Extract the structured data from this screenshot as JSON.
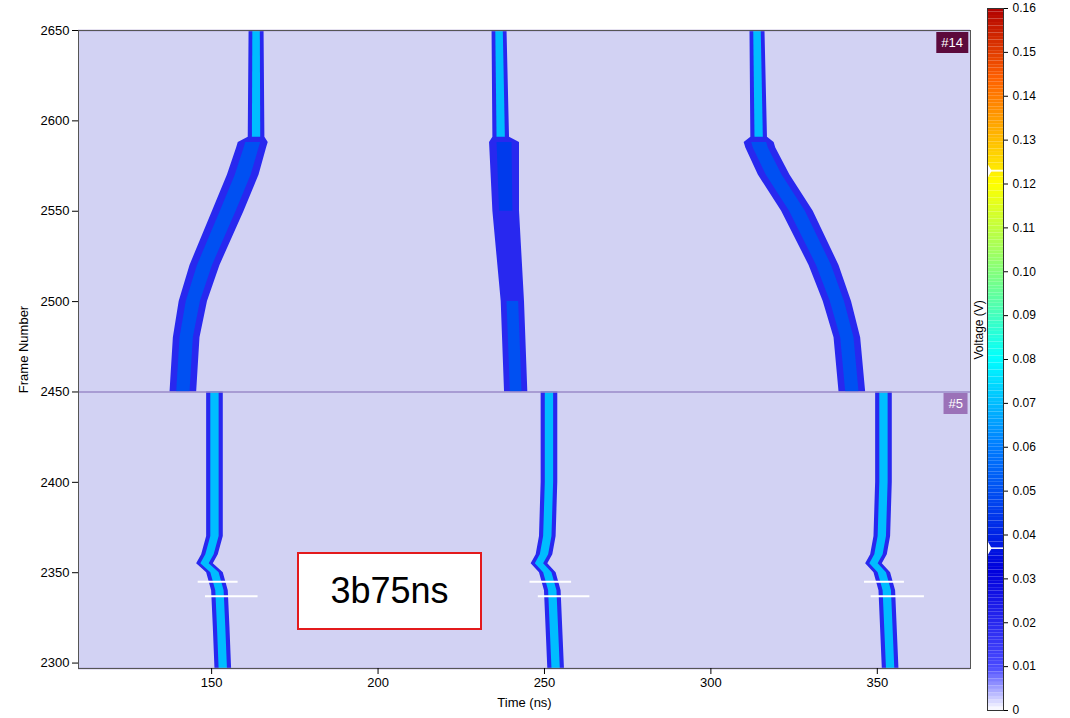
{
  "chart_data": {
    "type": "heatmap",
    "xlabel": "Time (ns)",
    "ylabel": "Frame Number",
    "xlim": [
      110,
      378
    ],
    "xticks": [
      150,
      200,
      250,
      300,
      350
    ],
    "ylim": [
      2297,
      2650
    ],
    "yticks": [
      2300,
      2350,
      2400,
      2450,
      2500,
      2550,
      2600,
      2650
    ],
    "colorbar": {
      "label": "Voltage (V)",
      "range": [
        0,
        0.16
      ],
      "ticks": [
        0,
        0.01,
        0.02,
        0.03,
        0.04,
        0.05,
        0.06,
        0.07,
        0.08,
        0.09,
        {
          "value": 0.1,
          "label": "0.10"
        },
        0.11,
        0.12,
        0.13,
        0.14,
        0.15,
        0.16
      ],
      "markers": [
        0.123,
        0.037
      ]
    },
    "panels": [
      {
        "label": "#14",
        "color": "#5c0a3c",
        "ylim": [
          2450,
          2650
        ],
        "ridges": [
          {
            "frames": [
              2450,
              2480,
              2500,
              2520,
              2550,
              2570,
              2585,
              2588,
              2591,
              2650
            ],
            "time": [
              141.5,
              142.5,
              144.5,
              148,
              155,
              159.5,
              162,
              162.5,
              163.5,
              163.5
            ],
            "width": [
              8,
              8,
              8.5,
              9,
              9.5,
              9.5,
              9,
              9,
              5,
              4.5
            ],
            "peak": [
              0.05,
              0.05,
              0.05,
              0.05,
              0.05,
              0.05,
              0.05,
              0.05,
              0.07,
              0.07
            ],
            "edge": 0.02
          },
          {
            "frames": [
              2450,
              2500,
              2550,
              2588,
              2591,
              2650
            ],
            "time": [
              241.5,
              240.5,
              238.5,
              238,
              237,
              236.5
            ],
            "width": [
              7,
              7,
              8,
              9,
              5,
              4.5
            ],
            "peak": [
              0.05,
              0.05,
              0.045,
              0.045,
              0.07,
              0.07
            ],
            "edge": 0.02
          },
          {
            "frames": [
              2450,
              2480,
              2500,
              2520,
              2550,
              2570,
              2585,
              2588,
              2591,
              2650
            ],
            "time": [
              342.5,
              341,
              338,
              334,
              326,
              319,
              315,
              314.5,
              314.5,
              314
            ],
            "width": [
              8,
              8,
              8.5,
              9,
              9.5,
              9.5,
              9,
              9,
              5,
              4.5
            ],
            "peak": [
              0.05,
              0.05,
              0.05,
              0.05,
              0.05,
              0.05,
              0.05,
              0.05,
              0.07,
              0.07
            ],
            "edge": 0.02
          }
        ]
      },
      {
        "label": "#5",
        "color": "#9b72b8",
        "ylim": [
          2297,
          2450
        ],
        "ridges": [
          {
            "frames": [
              2297,
              2320,
              2340,
              2350,
              2355,
              2360,
              2370,
              2400,
              2450
            ],
            "time": [
              153.5,
              153,
              152.5,
              151,
              148,
              149.5,
              151,
              151,
              151
            ],
            "width": [
              5,
              5,
              5,
              5,
              5,
              5,
              5,
              5,
              5
            ],
            "peak": [
              0.07,
              0.07,
              0.07,
              0.07,
              0.07,
              0.07,
              0.07,
              0.07,
              0.07
            ],
            "edge": 0.02
          },
          {
            "frames": [
              2297,
              2340,
              2350,
              2355,
              2360,
              2370,
              2400,
              2450
            ],
            "time": [
              253.5,
              252.5,
              251,
              248.5,
              250,
              251,
              251.5,
              251.5
            ],
            "width": [
              5,
              5,
              5,
              5,
              5,
              5,
              5,
              5
            ],
            "peak": [
              0.07,
              0.07,
              0.07,
              0.07,
              0.07,
              0.07,
              0.07,
              0.07
            ],
            "edge": 0.02
          },
          {
            "frames": [
              2297,
              2340,
              2350,
              2355,
              2360,
              2370,
              2400,
              2450
            ],
            "time": [
              354,
              353,
              351.5,
              349,
              350.5,
              351.5,
              352,
              352
            ],
            "width": [
              5,
              5,
              5,
              5,
              5,
              5,
              5,
              5
            ],
            "peak": [
              0.07,
              0.07,
              0.07,
              0.07,
              0.07,
              0.07,
              0.07,
              0.07
            ],
            "edge": 0.02
          }
        ],
        "streaks": [
          {
            "frame": 2345,
            "time": [
              145.8,
              157.8
            ]
          },
          {
            "frame": 2337,
            "time": [
              148,
              163.8
            ]
          },
          {
            "frame": 2345,
            "time": [
              245.5,
              258
            ]
          },
          {
            "frame": 2337,
            "time": [
              248,
              263.5
            ]
          },
          {
            "frame": 2345,
            "time": [
              346,
              358
            ]
          },
          {
            "frame": 2337,
            "time": [
              348,
              364
            ]
          }
        ]
      }
    ],
    "annotations": [
      "3b75ns"
    ]
  }
}
